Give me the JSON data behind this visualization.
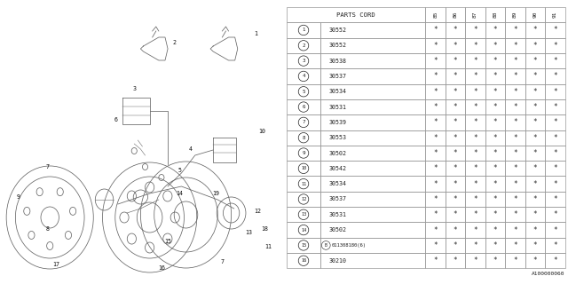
{
  "bg_color": "#ffffff",
  "rows": [
    {
      "num": "1",
      "code": "30552"
    },
    {
      "num": "2",
      "code": "30552"
    },
    {
      "num": "3",
      "code": "30538"
    },
    {
      "num": "4",
      "code": "30537"
    },
    {
      "num": "5",
      "code": "30534"
    },
    {
      "num": "6",
      "code": "30531"
    },
    {
      "num": "7",
      "code": "30539"
    },
    {
      "num": "8",
      "code": "30553"
    },
    {
      "num": "9",
      "code": "30502"
    },
    {
      "num": "10",
      "code": "30542"
    },
    {
      "num": "11",
      "code": "30534"
    },
    {
      "num": "12",
      "code": "30537"
    },
    {
      "num": "13",
      "code": "30531"
    },
    {
      "num": "14",
      "code": "30502"
    },
    {
      "num": "15",
      "code": "(B)011308180(6)",
      "special": true
    },
    {
      "num": "16",
      "code": "30210"
    }
  ],
  "years": [
    "85",
    "86",
    "87",
    "88",
    "89",
    "90",
    "91"
  ],
  "footnote": "A100000060",
  "line_color": "#999999",
  "text_color": "#222222",
  "draw_color": "#666666"
}
